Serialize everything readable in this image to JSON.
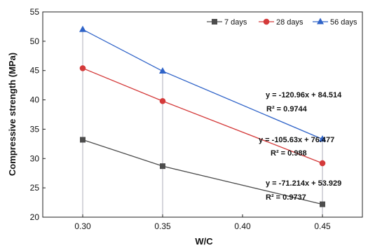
{
  "chart_data": {
    "type": "line",
    "xlabel": "W/C",
    "ylabel": "Compressive strength (MPa)",
    "xlim": [
      0.275,
      0.475
    ],
    "ylim": [
      20,
      55
    ],
    "x_ticks": [
      "0.30",
      "0.35",
      "0.40",
      "0.45"
    ],
    "y_ticks": [
      "20",
      "25",
      "30",
      "35",
      "40",
      "45",
      "50",
      "55"
    ],
    "x": [
      0.3,
      0.35,
      0.45
    ],
    "series": [
      {
        "name": "7 days",
        "values": [
          33.2,
          28.7,
          22.2
        ],
        "color": "#4d4d4d",
        "marker": "square"
      },
      {
        "name": "28 days",
        "values": [
          45.4,
          39.8,
          29.2
        ],
        "color": "#d43a3a",
        "marker": "circle"
      },
      {
        "name": "56 days",
        "values": [
          52.0,
          44.9,
          33.3
        ],
        "color": "#2f63c8",
        "marker": "triangle"
      }
    ],
    "grid": "vertical drop lines at data points",
    "legend_position": "top-right",
    "annotations": [
      {
        "equation": "y = -120.96x + 84.514",
        "r2": "R² = 0.9744"
      },
      {
        "equation": "y = -105.63x + 76.477",
        "r2": "R² = 0.988"
      },
      {
        "equation": "y = -71.214x + 53.929",
        "r2": "R² = 0.9737"
      }
    ]
  }
}
